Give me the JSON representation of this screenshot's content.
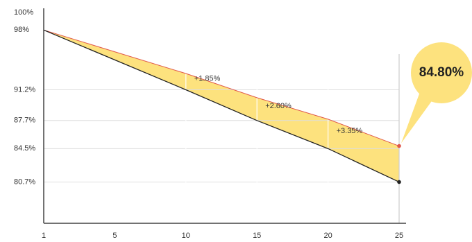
{
  "chart_data": {
    "type": "line",
    "categories": [
      "1",
      "5",
      "10",
      "15",
      "20",
      "25"
    ],
    "series": [
      {
        "color": "#e0574a",
        "values": [
          98,
          null,
          93.05,
          90.3,
          87.85,
          84.8
        ],
        "value_labels": [
          null,
          null,
          null,
          null,
          null,
          "84.80%"
        ]
      },
      {
        "color": "#222222",
        "values": [
          98,
          null,
          91.2,
          87.7,
          84.5,
          80.7
        ]
      }
    ],
    "gap_labels": [
      null,
      null,
      "+1.85%",
      "+2.60%",
      "+3.35%",
      null
    ],
    "fill_color": "#fde27e",
    "ylim": [
      76,
      100
    ],
    "yticks": [
      {
        "value": 100,
        "label": "100%"
      },
      {
        "value": 98,
        "label": "98%"
      },
      {
        "value": 91.2,
        "label": "91.2%"
      },
      {
        "value": 87.7,
        "label": "87.7%"
      },
      {
        "value": 84.5,
        "label": "84.5%"
      },
      {
        "value": 80.7,
        "label": "80.7%"
      }
    ],
    "grid": true
  }
}
